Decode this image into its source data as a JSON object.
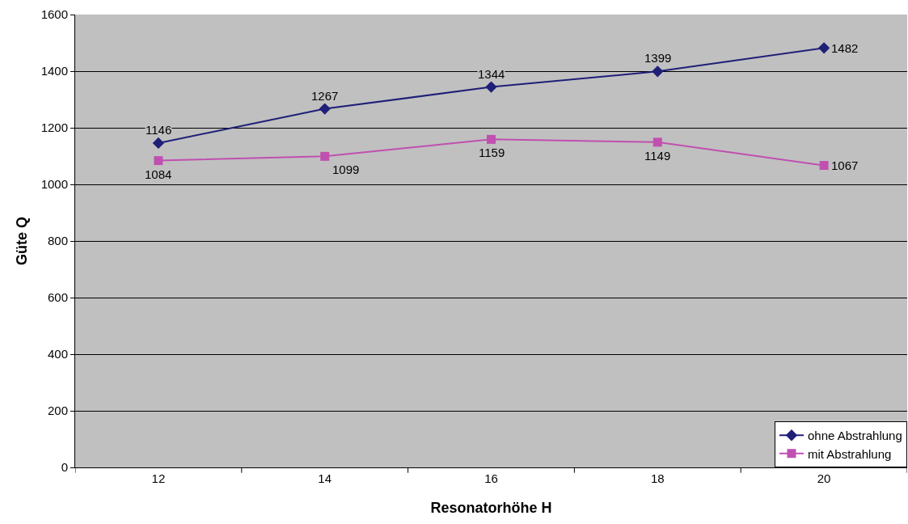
{
  "chart_data": {
    "type": "line",
    "xlabel": "Resonatorhöhe H",
    "ylabel": "Güte Q",
    "categories": [
      "12",
      "14",
      "16",
      "18",
      "20"
    ],
    "series": [
      {
        "name": "ohne Abstrahlung",
        "color": "#1f1f78",
        "marker": "diamond",
        "values": [
          1146,
          1267,
          1344,
          1399,
          1482
        ]
      },
      {
        "name": "mit Abstrahlung",
        "color": "#c050b0",
        "marker": "square",
        "values": [
          1084,
          1099,
          1159,
          1149,
          1067
        ]
      }
    ],
    "ylim": [
      0,
      1600
    ],
    "yticks": [
      0,
      200,
      400,
      600,
      800,
      1000,
      1200,
      1400,
      1600
    ],
    "grid": "y",
    "legend": "bottom right",
    "data_labels": true
  }
}
